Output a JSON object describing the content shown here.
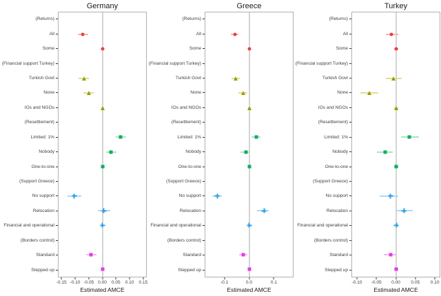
{
  "chart_data": {
    "type": "scatter",
    "subtype": "coefficient-dot-whisker",
    "grid": false,
    "legend": false,
    "categories": [
      "(Returns)",
      "All",
      "Some",
      "(Financial support Turkey)",
      "Turkish Govt",
      "None",
      "IOs and NGOs",
      "(Resettlement)",
      "Limited: 1%",
      "Nobody",
      "One-to-one",
      "(Support Greece)",
      "No support",
      "Relocation",
      "Financial and operational",
      "(Borders control)",
      "Standard",
      "Stepped up"
    ],
    "row_groups": [
      null,
      0,
      0,
      null,
      1,
      1,
      1,
      null,
      2,
      2,
      2,
      null,
      3,
      3,
      3,
      null,
      4,
      4
    ],
    "groups": [
      {
        "name": "Returns",
        "shape": "circle",
        "color": "#ee3f3f",
        "light": "#f8b2b0"
      },
      {
        "name": "Financial support Turkey",
        "shape": "triangle",
        "color": "#9a9e00",
        "light": "#dcdf96"
      },
      {
        "name": "Resettlement",
        "shape": "square",
        "color": "#10ae5f",
        "light": "#a9e3c6"
      },
      {
        "name": "Support Greece",
        "shape": "plus",
        "color": "#2b9fe8",
        "light": "#aed9f7"
      },
      {
        "name": "Borders control",
        "shape": "square",
        "color": "#e23ee2",
        "light": "#f5b5f5"
      }
    ],
    "panels": [
      {
        "title": "Germany",
        "xlabel": "Estimated AMCE",
        "xlim": [
          -0.163,
          0.163
        ],
        "xticks": [
          "-0.15",
          "-0.10",
          "-0.05",
          "0.00",
          "0.05",
          "0.10",
          "0.15"
        ],
        "xtick_values": [
          -0.15,
          -0.1,
          -0.05,
          0,
          0.05,
          0.1,
          0.15
        ],
        "estimates": [
          null,
          {
            "est": -0.072,
            "lo": -0.091,
            "hi": -0.053
          },
          {
            "est": 0.001,
            "lo": -0.004,
            "hi": 0.006
          },
          null,
          {
            "est": -0.068,
            "lo": -0.088,
            "hi": -0.049
          },
          {
            "est": -0.051,
            "lo": -0.071,
            "hi": -0.031
          },
          {
            "est": 0.002,
            "lo": -0.003,
            "hi": 0.007
          },
          null,
          {
            "est": 0.069,
            "lo": 0.05,
            "hi": 0.088
          },
          {
            "est": 0.033,
            "lo": 0.013,
            "hi": 0.053
          },
          {
            "est": 0.002,
            "lo": -0.004,
            "hi": 0.008
          },
          null,
          {
            "est": -0.104,
            "lo": -0.129,
            "hi": -0.079
          },
          {
            "est": 0.006,
            "lo": -0.016,
            "hi": 0.029
          },
          {
            "est": 0.001,
            "lo": -0.005,
            "hi": 0.007
          },
          null,
          {
            "est": -0.042,
            "lo": -0.061,
            "hi": -0.023
          },
          {
            "est": 0.001,
            "lo": -0.005,
            "hi": 0.007
          }
        ]
      },
      {
        "title": "Greece",
        "xlabel": "Estimated AMCE",
        "xlim": [
          -0.18,
          0.18
        ],
        "xticks": [
          "-0.1",
          "0.0",
          "0.1"
        ],
        "xtick_values": [
          -0.1,
          0,
          0.1
        ],
        "estimates": [
          null,
          {
            "est": -0.059,
            "lo": -0.074,
            "hi": -0.043
          },
          {
            "est": 0.001,
            "lo": -0.004,
            "hi": 0.006
          },
          null,
          {
            "est": -0.055,
            "lo": -0.072,
            "hi": -0.037
          },
          {
            "est": -0.025,
            "lo": -0.043,
            "hi": -0.007
          },
          {
            "est": 0.002,
            "lo": -0.003,
            "hi": 0.007
          },
          null,
          {
            "est": 0.029,
            "lo": 0.009,
            "hi": 0.046
          },
          {
            "est": -0.014,
            "lo": -0.035,
            "hi": 0.005
          },
          {
            "est": 0.001,
            "lo": -0.005,
            "hi": 0.007
          },
          null,
          {
            "est": -0.131,
            "lo": -0.151,
            "hi": -0.111
          },
          {
            "est": 0.061,
            "lo": 0.034,
            "hi": 0.08
          },
          {
            "est": 0.001,
            "lo": -0.005,
            "hi": 0.007
          },
          null,
          {
            "est": -0.025,
            "lo": -0.042,
            "hi": -0.008
          },
          {
            "est": 0.001,
            "lo": -0.005,
            "hi": 0.007
          }
        ]
      },
      {
        "title": "Turkey",
        "xlabel": "Estimated AMCE",
        "xlim": [
          -0.114,
          0.114
        ],
        "xticks": [
          "-0.10",
          "-0.05",
          "0.00",
          "0.05",
          "0.10"
        ],
        "xtick_values": [
          -0.1,
          -0.05,
          0,
          0.05,
          0.1
        ],
        "estimates": [
          null,
          {
            "est": -0.011,
            "lo": -0.026,
            "hi": 0.006
          },
          {
            "est": 0.001,
            "lo": -0.004,
            "hi": 0.006
          },
          null,
          {
            "est": -0.007,
            "lo": -0.026,
            "hi": 0.015
          },
          {
            "est": -0.07,
            "lo": -0.093,
            "hi": -0.045
          },
          {
            "est": 0.001,
            "lo": -0.004,
            "hi": 0.006
          },
          null,
          {
            "est": 0.035,
            "lo": 0.013,
            "hi": 0.06
          },
          {
            "est": -0.028,
            "lo": -0.05,
            "hi": -0.008
          },
          {
            "est": 0.001,
            "lo": -0.005,
            "hi": 0.007
          },
          null,
          {
            "est": -0.014,
            "lo": -0.042,
            "hi": 0.006
          },
          {
            "est": 0.021,
            "lo": 0.0,
            "hi": 0.044
          },
          {
            "est": 0.001,
            "lo": -0.005,
            "hi": 0.007
          },
          null,
          {
            "est": -0.013,
            "lo": -0.031,
            "hi": 0.002
          },
          {
            "est": 0.001,
            "lo": -0.005,
            "hi": 0.007
          }
        ]
      }
    ]
  }
}
